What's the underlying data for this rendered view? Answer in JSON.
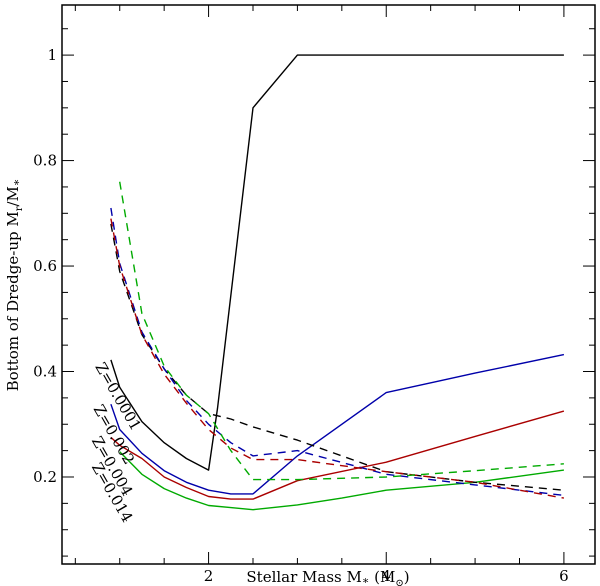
{
  "chart_data": {
    "type": "line",
    "title": "",
    "xlabel": "Stellar Mass M∗ (M⊙)",
    "ylabel": "Bottom of Dredge-up Mr/M∗",
    "xlabel_parts": {
      "main": "Stellar Mass M",
      "star": "∗",
      "unit_open": " (M",
      "unit_sub": "⊙",
      "unit_close": ")"
    },
    "ylabel_parts": {
      "main": "Bottom of Dredge-up M",
      "sub": "r",
      "slash": "/M",
      "star": "∗"
    },
    "xlim": [
      0.35,
      6.35
    ],
    "ylim": [
      0.035,
      1.095
    ],
    "xticks": [
      2,
      4,
      6
    ],
    "xtick_labels": [
      "2",
      "4",
      "6"
    ],
    "yticks": [
      0.2,
      0.4,
      0.6,
      0.8,
      1.0
    ],
    "ytick_labels": [
      "0.2",
      "0.4",
      "0.6",
      "0.8",
      "1"
    ],
    "grid": false,
    "legend": "inline annotations, left",
    "annotations": [
      {
        "text": "Z=0.0001",
        "color": "#000000",
        "x": 0.72,
        "y": 0.41,
        "angle": -60
      },
      {
        "text": "Z=0.002",
        "color": "#0000aa",
        "x": 0.7,
        "y": 0.33,
        "angle": -60
      },
      {
        "text": "Z=0.004",
        "color": "#aa0000",
        "x": 0.68,
        "y": 0.27,
        "angle": -60
      },
      {
        "text": "Z=0.014",
        "color": "#00aa00",
        "x": 0.68,
        "y": 0.22,
        "angle": -60
      }
    ],
    "series": [
      {
        "name": "Z=0.0001 solid",
        "color": "#000000",
        "dash": false,
        "x": [
          0.9,
          1.0,
          1.25,
          1.5,
          1.75,
          2.0,
          2.1,
          2.5,
          3.0,
          4.0,
          5.0,
          6.0
        ],
        "y": [
          0.422,
          0.37,
          0.305,
          0.265,
          0.235,
          0.213,
          0.33,
          0.9,
          1.0,
          1.0,
          1.0,
          1.0
        ]
      },
      {
        "name": "Z=0.002 solid",
        "color": "#0000aa",
        "dash": false,
        "x": [
          0.9,
          1.0,
          1.25,
          1.5,
          1.75,
          2.0,
          2.25,
          2.5,
          3.0,
          4.0,
          5.0,
          6.0
        ],
        "y": [
          0.338,
          0.29,
          0.245,
          0.212,
          0.19,
          0.175,
          0.168,
          0.168,
          0.24,
          0.36,
          0.397,
          0.432
        ]
      },
      {
        "name": "Z=0.004 solid",
        "color": "#aa0000",
        "dash": false,
        "x": [
          0.9,
          1.0,
          1.25,
          1.5,
          1.75,
          2.0,
          2.25,
          2.5,
          3.0,
          4.0,
          5.0,
          6.0
        ],
        "y": [
          0.275,
          0.26,
          0.235,
          0.2,
          0.18,
          0.163,
          0.158,
          0.158,
          0.193,
          0.228,
          0.277,
          0.325
        ]
      },
      {
        "name": "Z=0.014 solid",
        "color": "#00aa00",
        "dash": false,
        "x": [
          1.0,
          1.25,
          1.5,
          1.75,
          2.0,
          2.25,
          2.5,
          3.0,
          3.5,
          4.0,
          5.0,
          6.0
        ],
        "y": [
          0.248,
          0.205,
          0.178,
          0.16,
          0.146,
          0.142,
          0.138,
          0.147,
          0.16,
          0.175,
          0.19,
          0.213
        ]
      },
      {
        "name": "Z=0.0001 dashed",
        "color": "#000000",
        "dash": true,
        "x": [
          0.9,
          1.0,
          1.25,
          1.5,
          1.75,
          2.0,
          2.25,
          2.5,
          3.0,
          4.0,
          5.0,
          6.0
        ],
        "y": [
          0.68,
          0.59,
          0.47,
          0.405,
          0.355,
          0.32,
          0.31,
          0.295,
          0.27,
          0.21,
          0.19,
          0.175
        ]
      },
      {
        "name": "Z=0.002 dashed",
        "color": "#0000aa",
        "dash": true,
        "x": [
          0.9,
          1.0,
          1.25,
          1.5,
          1.75,
          2.0,
          2.25,
          2.5,
          3.0,
          4.0,
          5.0,
          6.0
        ],
        "y": [
          0.71,
          0.605,
          0.475,
          0.405,
          0.345,
          0.3,
          0.265,
          0.24,
          0.25,
          0.205,
          0.185,
          0.165
        ]
      },
      {
        "name": "Z=0.004 dashed",
        "color": "#aa0000",
        "dash": true,
        "x": [
          0.9,
          1.0,
          1.25,
          1.5,
          1.75,
          2.0,
          2.25,
          2.5,
          3.0,
          4.0,
          5.0,
          6.0
        ],
        "y": [
          0.69,
          0.6,
          0.47,
          0.395,
          0.34,
          0.29,
          0.255,
          0.233,
          0.233,
          0.21,
          0.19,
          0.16
        ]
      },
      {
        "name": "Z=0.014 dashed",
        "color": "#00aa00",
        "dash": true,
        "x": [
          1.0,
          1.25,
          1.5,
          1.75,
          2.0,
          2.25,
          2.5,
          3.0,
          4.0,
          5.0,
          6.0
        ],
        "y": [
          0.76,
          0.51,
          0.41,
          0.355,
          0.32,
          0.25,
          0.195,
          0.195,
          0.2,
          0.212,
          0.225
        ]
      }
    ]
  }
}
